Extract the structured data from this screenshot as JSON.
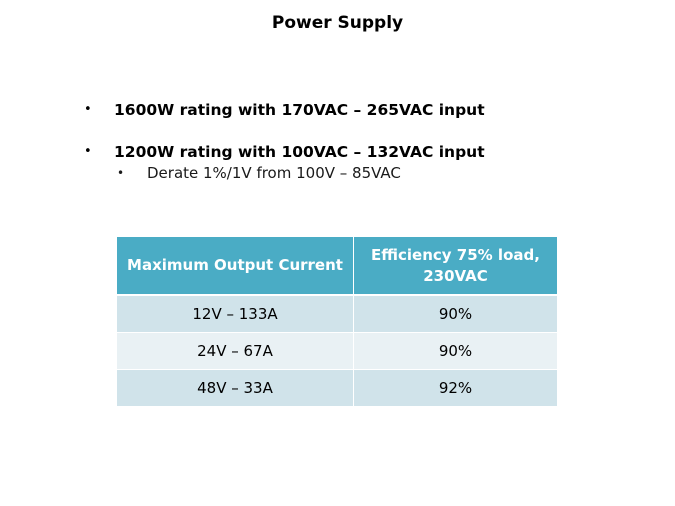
{
  "slide": {
    "title": "Power Supply"
  },
  "bullets": [
    {
      "marker": "•",
      "text": "1600W rating with 170VAC – 265VAC input"
    },
    {
      "marker": "•",
      "text": "1200W rating with 100VAC – 132VAC input",
      "sub": {
        "marker": "•",
        "text": "Derate 1%/1V from 100V – 85VAC"
      }
    }
  ],
  "table": {
    "headers": [
      "Maximum Output Current",
      "Efficiency 75% load, 230VAC"
    ],
    "rows": [
      [
        "12V – 133A",
        "90%"
      ],
      [
        "24V – 67A",
        "90%"
      ],
      [
        "48V – 33A",
        "92%"
      ]
    ],
    "colors": {
      "header_bg": "#4aacc5",
      "row_odd_bg": "#d0e3ea",
      "row_even_bg": "#e9f1f4"
    }
  }
}
